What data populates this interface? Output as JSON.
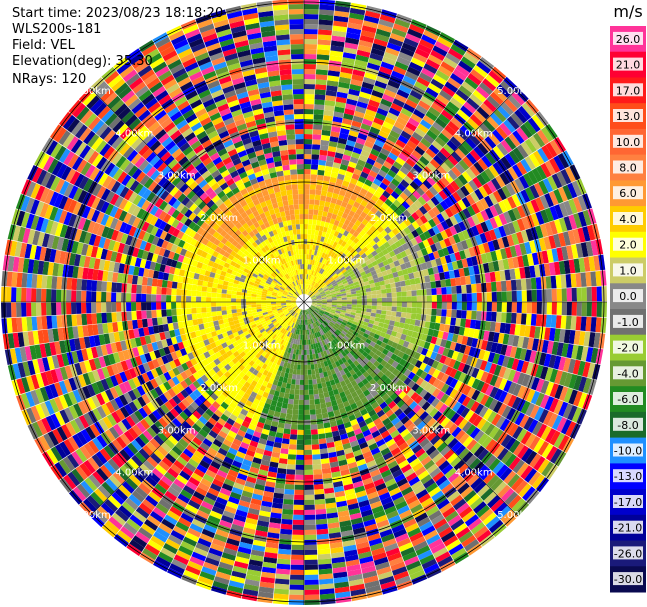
{
  "header": {
    "start_time": "Start time: 2023/08/23 18:18:20",
    "instrument": "WLS200s-181",
    "field": "Field: VEL",
    "elevation": "Elevation(deg): 35.30",
    "nrays": "NRays: 120"
  },
  "chart_data": {
    "type": "heatmap",
    "projection": "polar (PPI)",
    "range_rings": [
      {
        "label": "1.00km"
      },
      {
        "label": "2.00km"
      },
      {
        "label": "3.00km"
      },
      {
        "label": "4.00km"
      },
      {
        "label": "5.00km"
      }
    ],
    "colorbar": {
      "unit": "m/s",
      "levels": [
        "26.0",
        "21.0",
        "17.0",
        "13.0",
        "10.0",
        "8.0",
        "6.0",
        "4.0",
        "2.0",
        "1.0",
        "0.0",
        "-1.0",
        "-2.0",
        "-4.0",
        "-6.0",
        "-8.0",
        "-10.0",
        "-13.0",
        "-17.0",
        "-21.0",
        "-26.0",
        "-30.0"
      ],
      "colors": [
        "#ff3399",
        "#ff0033",
        "#ff1a1a",
        "#ff4d1a",
        "#ff6633",
        "#ff8040",
        "#ff9933",
        "#ffcc00",
        "#ffff00",
        "#cccc66",
        "#888888",
        "#707070",
        "#99cc33",
        "#669933",
        "#228b22",
        "#1a6b2a",
        "#1e90ff",
        "#0000ff",
        "#0000cc",
        "#000099",
        "#1a1a7a",
        "#0a0a50"
      ]
    },
    "rays": 120
  }
}
